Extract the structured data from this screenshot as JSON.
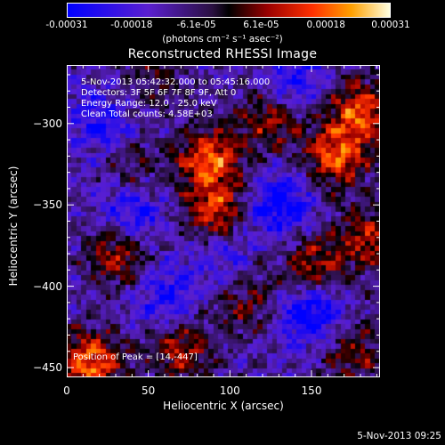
{
  "colorbar": {
    "tick_labels": [
      "-0.00031",
      "-0.00018",
      "-6.1e-05",
      "6.1e-05",
      "0.00018",
      "0.00031"
    ],
    "units_text": "(photons cm⁻² s⁻¹ asec⁻²)",
    "range": [
      -0.00031,
      0.00031
    ]
  },
  "chart_data": {
    "type": "heatmap",
    "title": "Reconstructed RHESSI Image",
    "xlabel": "Heliocentric X (arcsec)",
    "ylabel": "Heliocentric Y (arcsec)",
    "xlim": [
      0,
      192
    ],
    "ylim": [
      -456,
      -264
    ],
    "x_ticks": [
      0,
      50,
      100,
      150
    ],
    "y_ticks": [
      -300,
      -350,
      -400,
      -450
    ],
    "annotations": [
      "5-Nov-2013 05:42:32.000 to 05:45:16.000",
      "Detectors: 3F 5F 6F 7F 8F 9F, Att 0",
      "Energy Range: 12.0 - 25.0 keV",
      "Clean     Total counts: 4.58E+03"
    ],
    "peak_label": "Position of Peak = [14,-447]",
    "peak_position": [
      14,
      -447
    ],
    "hot_spots": [
      {
        "x": 88,
        "y": -322,
        "v": 0.00028
      },
      {
        "x": 92,
        "y": -355,
        "v": 0.00025
      },
      {
        "x": 32,
        "y": -379,
        "v": 0.00022
      },
      {
        "x": 14,
        "y": -447,
        "v": 0.00031
      },
      {
        "x": 165,
        "y": -320,
        "v": 0.00027
      },
      {
        "x": 180,
        "y": -292,
        "v": 0.00026
      },
      {
        "x": 150,
        "y": -388,
        "v": 0.00022
      },
      {
        "x": 70,
        "y": -440,
        "v": 0.0002
      },
      {
        "x": 40,
        "y": -330,
        "v": 0.00012
      },
      {
        "x": 125,
        "y": -298,
        "v": 0.00018
      },
      {
        "x": 110,
        "y": -410,
        "v": 0.00014
      },
      {
        "x": 185,
        "y": -370,
        "v": 0.0002
      },
      {
        "x": 175,
        "y": -440,
        "v": 0.00016
      },
      {
        "x": 55,
        "y": -270,
        "v": 0.0001
      }
    ],
    "cold_spots": [
      {
        "x": 40,
        "y": -355,
        "v": -0.0002
      },
      {
        "x": 130,
        "y": -350,
        "v": -0.00022
      },
      {
        "x": 150,
        "y": -415,
        "v": -0.00024
      },
      {
        "x": 60,
        "y": -405,
        "v": -0.00016
      },
      {
        "x": 140,
        "y": -275,
        "v": -0.00015
      },
      {
        "x": 20,
        "y": -300,
        "v": -0.00014
      },
      {
        "x": 95,
        "y": -380,
        "v": -0.00012
      }
    ]
  },
  "footer": {
    "datestamp": "5-Nov-2013 09:25"
  }
}
